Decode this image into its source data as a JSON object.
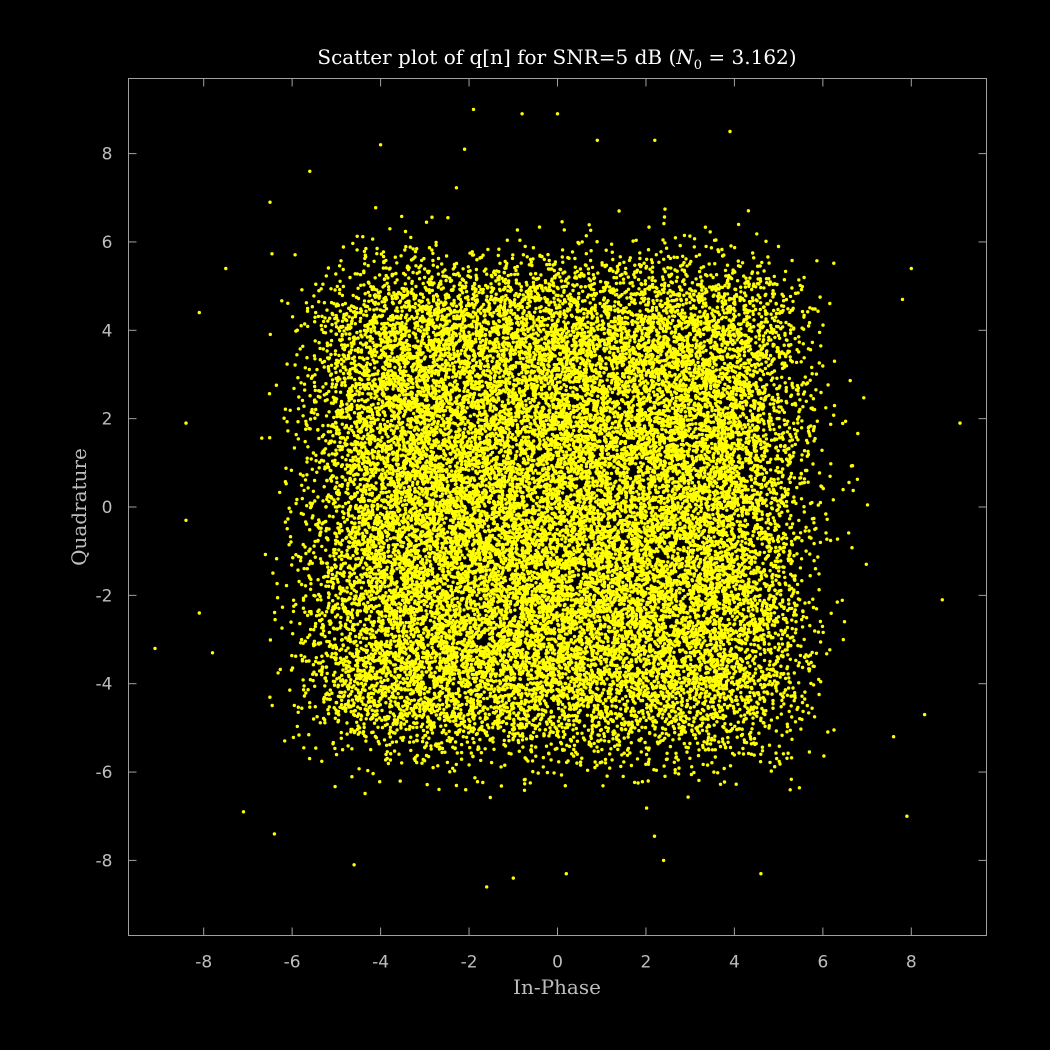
{
  "chart_data": {
    "type": "scatter",
    "title": {
      "prefix": "Scatter plot of q[n] for SNR=5 dB (",
      "math_var": "N",
      "math_sub": "0",
      "math_eq": " = 3.162",
      "suffix": ")"
    },
    "xlabel": "In-Phase",
    "ylabel": "Quadrature",
    "xlim": [
      -9.7,
      9.7
    ],
    "ylim": [
      -9.7,
      9.7
    ],
    "xticks": [
      -8,
      -6,
      -4,
      -2,
      0,
      2,
      4,
      6,
      8
    ],
    "yticks": [
      -8,
      -6,
      -4,
      -2,
      0,
      2,
      4,
      6,
      8
    ],
    "xtick_labels": [
      "-8",
      "-6",
      "-4",
      "-2",
      "0",
      "2",
      "4",
      "6",
      "8"
    ],
    "ytick_labels": [
      "-8",
      "-6",
      "-4",
      "-2",
      "0",
      "2",
      "4",
      "6",
      "8"
    ],
    "grid": false,
    "series": [
      {
        "marker_color": "#ffff00",
        "distribution": {
          "kind": "uniform-square-plus-gaussian-noise",
          "square_half_width": 4.9,
          "noise_std": 0.72,
          "count": 25000
        }
      }
    ],
    "outliers": [
      [
        -1.9,
        9.0
      ],
      [
        -0.8,
        8.9
      ],
      [
        0.0,
        8.9
      ],
      [
        0.9,
        8.3
      ],
      [
        2.2,
        8.3
      ],
      [
        3.9,
        8.5
      ],
      [
        -4.0,
        8.2
      ],
      [
        -2.1,
        8.1
      ],
      [
        -5.6,
        7.6
      ],
      [
        -6.5,
        6.9
      ],
      [
        7.8,
        4.7
      ],
      [
        8.0,
        5.4
      ],
      [
        -8.4,
        1.9
      ],
      [
        9.1,
        1.9
      ],
      [
        -8.4,
        -0.3
      ],
      [
        -8.1,
        -2.4
      ],
      [
        -9.1,
        -3.2
      ],
      [
        8.7,
        -2.1
      ],
      [
        8.3,
        -4.7
      ],
      [
        7.9,
        -7.0
      ],
      [
        -7.1,
        -6.9
      ],
      [
        -6.4,
        -7.4
      ],
      [
        -4.6,
        -8.1
      ],
      [
        -1.6,
        -8.6
      ],
      [
        -1.0,
        -8.4
      ],
      [
        0.2,
        -8.3
      ],
      [
        2.4,
        -8.0
      ],
      [
        4.6,
        -8.3
      ],
      [
        -8.1,
        4.4
      ],
      [
        -7.5,
        5.4
      ],
      [
        7.6,
        -5.2
      ],
      [
        -7.8,
        -3.3
      ]
    ]
  }
}
